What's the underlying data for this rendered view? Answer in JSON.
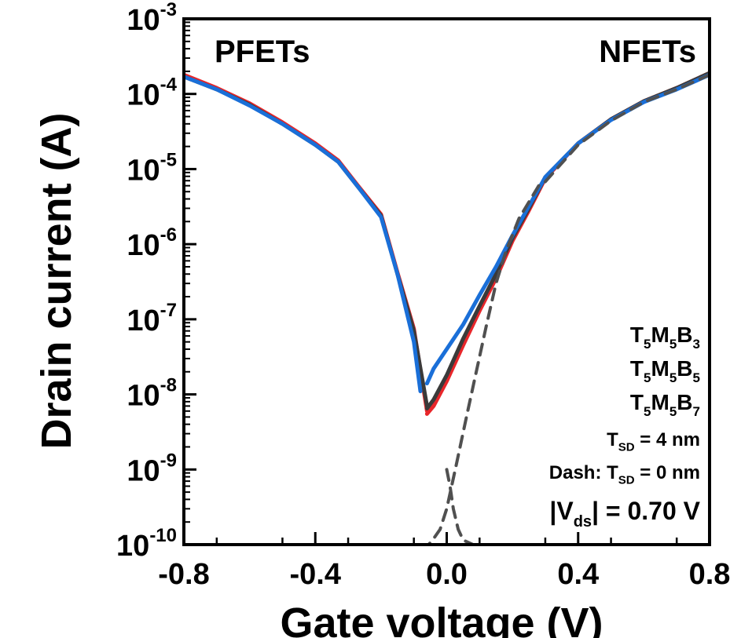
{
  "chart_data": {
    "type": "line",
    "xlabel": "Gate voltage (V)",
    "ylabel": "Drain current (A)",
    "xlim": [
      -0.8,
      0.8
    ],
    "ylim": [
      1e-10,
      0.001
    ],
    "y_scale": "log",
    "x_ticks": [
      "-0.8",
      "-0.4",
      "0.0",
      "0.4",
      "0.8"
    ],
    "x_tick_values": [
      -0.8,
      -0.4,
      0.0,
      0.4,
      0.8
    ],
    "y_ticks": [
      {
        "base": "10",
        "exp": "-3",
        "value": 0.001
      },
      {
        "base": "10",
        "exp": "-4",
        "value": 0.0001
      },
      {
        "base": "10",
        "exp": "-5",
        "value": 1e-05
      },
      {
        "base": "10",
        "exp": "-6",
        "value": 1e-06
      },
      {
        "base": "10",
        "exp": "-7",
        "value": 1e-07
      },
      {
        "base": "10",
        "exp": "-8",
        "value": 1e-08
      },
      {
        "base": "10",
        "exp": "-9",
        "value": 1e-09
      },
      {
        "base": "10",
        "exp": "-10",
        "value": 1e-10
      }
    ],
    "corner_labels": {
      "left": "PFETs",
      "right": "NFETs"
    },
    "legend_placement": "bottom-right",
    "legend": [
      {
        "parts": [
          [
            "T",
            ""
          ],
          [
            "5",
            "sub"
          ],
          [
            "M",
            ""
          ],
          [
            "5",
            "sub"
          ],
          [
            "B",
            ""
          ],
          [
            "3",
            "sub"
          ]
        ],
        "color": "#e8262a"
      },
      {
        "parts": [
          [
            "T",
            ""
          ],
          [
            "5",
            "sub"
          ],
          [
            "M",
            ""
          ],
          [
            "5",
            "sub"
          ],
          [
            "B",
            ""
          ],
          [
            "5",
            "sub"
          ]
        ],
        "color": "#3a3a3a"
      },
      {
        "parts": [
          [
            "T",
            ""
          ],
          [
            "5",
            "sub"
          ],
          [
            "M",
            ""
          ],
          [
            "5",
            "sub"
          ],
          [
            "B",
            ""
          ],
          [
            "7",
            "sub"
          ]
        ],
        "color": "#1a6fd8"
      }
    ],
    "notes": [
      {
        "parts": [
          [
            "T",
            ""
          ],
          [
            "SD",
            "sub"
          ],
          [
            " = 4 nm",
            ""
          ]
        ]
      },
      {
        "parts": [
          [
            "Dash: T",
            ""
          ],
          [
            "SD",
            "sub"
          ],
          [
            " = 0 nm",
            ""
          ]
        ]
      },
      {
        "parts": [
          [
            "|V",
            ""
          ],
          [
            "ds",
            "sub"
          ],
          [
            "| = 0.70 V",
            ""
          ]
        ]
      }
    ],
    "colors": {
      "T5M5B3": "#e8262a",
      "T5M5B5": "#3a3a3a",
      "T5M5B7": "#1a6fd8"
    },
    "series": [
      {
        "style": "solid",
        "color": "#e8262a",
        "x": [
          -0.8,
          -0.7,
          -0.6,
          -0.5,
          -0.4,
          -0.33,
          -0.27,
          -0.2,
          -0.15,
          -0.1,
          -0.06
        ],
        "y": [
          0.00018,
          0.00012,
          7.5e-05,
          4.2e-05,
          2.2e-05,
          1.3e-05,
          6e-06,
          2.5e-06,
          4.2e-07,
          7.5e-08,
          6e-09
        ]
      },
      {
        "style": "solid",
        "color": "#e8262a",
        "x": [
          -0.06,
          -0.04,
          0.0,
          0.05,
          0.1,
          0.15,
          0.2,
          0.25,
          0.3,
          0.4,
          0.5,
          0.6,
          0.7,
          0.8
        ],
        "y": [
          5.5e-09,
          7e-09,
          1.5e-08,
          4.5e-08,
          1.3e-07,
          3.5e-07,
          1.1e-06,
          2.8e-06,
          7.5e-06,
          2.2e-05,
          4.6e-05,
          8e-05,
          0.00012,
          0.00019
        ]
      },
      {
        "style": "solid",
        "color": "#3a3a3a",
        "x": [
          -0.8,
          -0.7,
          -0.6,
          -0.5,
          -0.4,
          -0.33,
          -0.27,
          -0.2,
          -0.15,
          -0.1,
          -0.06
        ],
        "y": [
          0.00017,
          0.000115,
          7.2e-05,
          4e-05,
          2.1e-05,
          1.25e-05,
          5.8e-06,
          2.4e-06,
          4e-07,
          7e-08,
          7e-09
        ]
      },
      {
        "style": "solid",
        "color": "#3a3a3a",
        "x": [
          -0.06,
          -0.04,
          0.0,
          0.05,
          0.1,
          0.15,
          0.2,
          0.25,
          0.3,
          0.4,
          0.5,
          0.6,
          0.7,
          0.8
        ],
        "y": [
          6.5e-09,
          8.5e-09,
          1.8e-08,
          5.5e-08,
          1.5e-07,
          4e-07,
          1.2e-06,
          3e-06,
          7.8e-06,
          2.2e-05,
          4.6e-05,
          8e-05,
          0.00012,
          0.00019
        ]
      },
      {
        "style": "solid",
        "color": "#1a6fd8",
        "x": [
          -0.8,
          -0.7,
          -0.6,
          -0.5,
          -0.4,
          -0.33,
          -0.27,
          -0.2,
          -0.15,
          -0.1,
          -0.08
        ],
        "y": [
          0.00017,
          0.000115,
          7e-05,
          4e-05,
          2.1e-05,
          1.25e-05,
          5.8e-06,
          2.3e-06,
          4e-07,
          5e-08,
          1.1e-08
        ]
      },
      {
        "style": "solid",
        "color": "#1a6fd8",
        "x": [
          -0.06,
          -0.04,
          0.0,
          0.05,
          0.1,
          0.15,
          0.2,
          0.25,
          0.3,
          0.4,
          0.5,
          0.6,
          0.7,
          0.8
        ],
        "y": [
          1.4e-08,
          2.2e-08,
          4e-08,
          8.5e-08,
          2.1e-07,
          5e-07,
          1.3e-06,
          3.2e-06,
          7.8e-06,
          2.2e-05,
          4.5e-05,
          7.8e-05,
          0.000115,
          0.00018
        ]
      },
      {
        "style": "dash",
        "color": "#505050",
        "x": [
          0.28,
          0.22,
          0.18,
          0.15,
          0.12,
          0.09,
          0.06,
          0.03,
          0.0,
          -0.02,
          -0.04,
          -0.055
        ],
        "y": [
          6e-06,
          2.2e-06,
          8e-07,
          3e-07,
          8e-08,
          2e-08,
          5e-09,
          1.2e-09,
          3e-10,
          1.6e-10,
          1.2e-10,
          1e-10
        ]
      },
      {
        "style": "dash",
        "color": "#505050",
        "x": [
          0.3,
          0.4,
          0.5,
          0.6,
          0.7,
          0.8
        ],
        "y": [
          6.8e-06,
          2.1e-05,
          4.4e-05,
          7.8e-05,
          0.000115,
          0.00018
        ]
      },
      {
        "style": "dash",
        "color": "#505050",
        "x": [
          0.0,
          0.01,
          0.02,
          0.035,
          0.05,
          0.08,
          0.12
        ],
        "y": [
          1e-09,
          6e-10,
          3e-10,
          1.6e-10,
          1.15e-10,
          1e-10,
          1e-10
        ]
      }
    ]
  }
}
